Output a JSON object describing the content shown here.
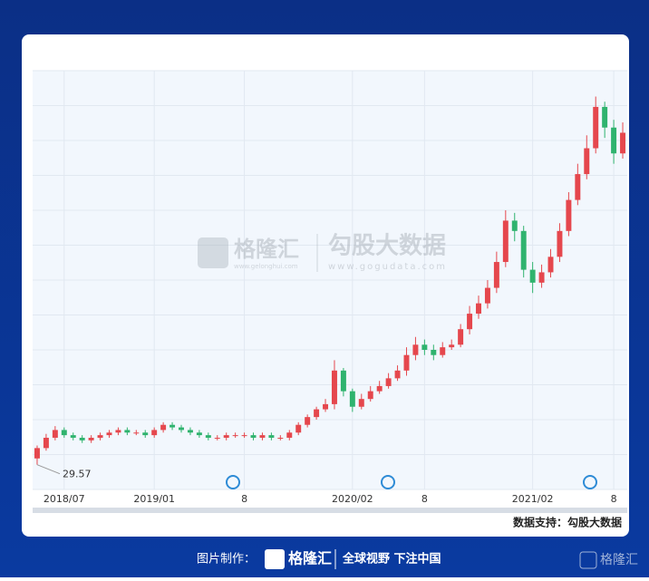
{
  "chart_data": {
    "type": "candlestick",
    "categories": [
      null,
      null,
      null,
      "2018/07",
      null,
      null,
      null,
      null,
      null,
      null,
      null,
      null,
      null,
      "2019/01",
      null,
      null,
      null,
      null,
      null,
      null,
      null,
      null,
      null,
      "8",
      null,
      null,
      null,
      null,
      null,
      null,
      null,
      null,
      null,
      null,
      null,
      "2020/02",
      null,
      null,
      null,
      null,
      null,
      null,
      null,
      "8",
      null,
      null,
      null,
      null,
      null,
      null,
      null,
      null,
      null,
      null,
      null,
      "2021/02",
      null,
      null,
      null,
      null,
      null,
      null,
      null,
      null,
      "8",
      null
    ],
    "opens": [
      32,
      36,
      40,
      43,
      41,
      40,
      39,
      40,
      41,
      42,
      43,
      42,
      42,
      41,
      43,
      45,
      44,
      43,
      42,
      41,
      40,
      40,
      41,
      41,
      41,
      40,
      41,
      40,
      40,
      42,
      45,
      48,
      51,
      53,
      66,
      58,
      52,
      55,
      58,
      60,
      63,
      66,
      72,
      76,
      74,
      72,
      75,
      76,
      82,
      88,
      92,
      98,
      108,
      124,
      120,
      105,
      100,
      104,
      110,
      120,
      132,
      142,
      152,
      168,
      160,
      150
    ],
    "closes": [
      36,
      40,
      43,
      41,
      40,
      39,
      40,
      41,
      42,
      43,
      42,
      42,
      41,
      43,
      45,
      44,
      43,
      42,
      41,
      40,
      40,
      41,
      41,
      41,
      40,
      41,
      40,
      40,
      42,
      45,
      48,
      51,
      53,
      66,
      58,
      52,
      55,
      58,
      60,
      63,
      66,
      72,
      76,
      74,
      72,
      75,
      76,
      82,
      88,
      92,
      98,
      108,
      124,
      120,
      105,
      100,
      104,
      110,
      120,
      132,
      142,
      152,
      168,
      160,
      150,
      158
    ],
    "highs": [
      37,
      41.5,
      44.5,
      44,
      42,
      41,
      41,
      42,
      43,
      44,
      44,
      43,
      43,
      44,
      46,
      46,
      45,
      44,
      43,
      42,
      41,
      42,
      42,
      42,
      42,
      42,
      42,
      41,
      43,
      46,
      49,
      52,
      55,
      70,
      67,
      59,
      57,
      60,
      62,
      65,
      68,
      75,
      79,
      78,
      76,
      77,
      78,
      84,
      91,
      95,
      101,
      112,
      128,
      127,
      122,
      108,
      107,
      113,
      123,
      135,
      146,
      157,
      172,
      170,
      163,
      162
    ],
    "lows": [
      29.57,
      35,
      39,
      40,
      39,
      38,
      38,
      39,
      40,
      41,
      41,
      41,
      40,
      40,
      42,
      43,
      42,
      41,
      40,
      39,
      39,
      39,
      40,
      40,
      39,
      39,
      39,
      39,
      39,
      41,
      44,
      47,
      50,
      51,
      56,
      50,
      51,
      54,
      57,
      59,
      62,
      64,
      70,
      72,
      70,
      71,
      74,
      75,
      80,
      86,
      90,
      96,
      106,
      116,
      102,
      96,
      98,
      102,
      108,
      118,
      130,
      140,
      150,
      156,
      146,
      148
    ],
    "up_color": "#e5474d",
    "down_color": "#2fb36e",
    "ylim": [
      20,
      182
    ],
    "grid": true,
    "low_label": 29.57
  },
  "source": "数据支持：勾股大数据",
  "watermark": {
    "brand": "格隆汇",
    "brand_url": "www.gelonghui.com",
    "partner": "勾股大数据",
    "partner_url": "www.gogudata.com"
  },
  "footer": {
    "made_by": "图片制作：",
    "brand": "格隆汇",
    "slogan": "全球视野 下注中国",
    "corner_brand": "格隆汇"
  }
}
